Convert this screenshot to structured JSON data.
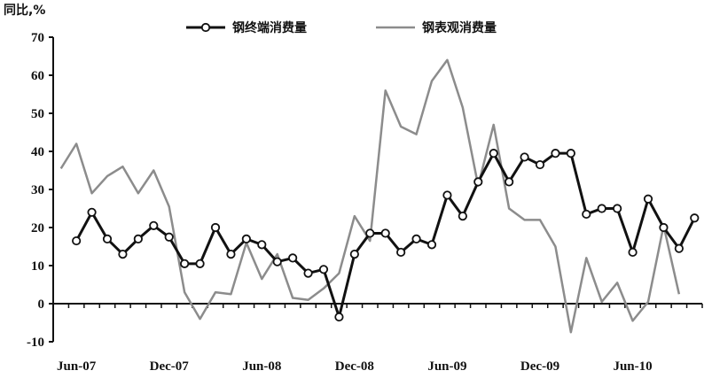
{
  "chart_data": {
    "type": "line",
    "ylabel": "同比,%",
    "ylim": [
      -10,
      70
    ],
    "yticks": [
      -10,
      0,
      10,
      20,
      30,
      40,
      50,
      60,
      70
    ],
    "grid": false,
    "legend_placement": "top",
    "x": [
      "2007-05",
      "2007-06",
      "2007-07",
      "2007-08",
      "2007-09",
      "2007-10",
      "2007-11",
      "2007-12",
      "2008-01",
      "2008-02",
      "2008-03",
      "2008-04",
      "2008-05",
      "2008-06",
      "2008-07",
      "2008-08",
      "2008-09",
      "2008-10",
      "2008-11",
      "2008-12",
      "2009-01",
      "2009-02",
      "2009-03",
      "2009-04",
      "2009-05",
      "2009-06",
      "2009-07",
      "2009-08",
      "2009-09",
      "2009-10",
      "2009-11",
      "2009-12",
      "2010-01",
      "2010-02",
      "2010-03",
      "2010-04",
      "2010-05",
      "2010-06",
      "2010-07",
      "2010-08",
      "2010-09",
      "2010-10"
    ],
    "xtick_labels": [
      {
        "x": "2007-06",
        "label": "Jun-07"
      },
      {
        "x": "2007-12",
        "label": "Dec-07"
      },
      {
        "x": "2008-06",
        "label": "Jun-08"
      },
      {
        "x": "2008-12",
        "label": "Dec-08"
      },
      {
        "x": "2009-06",
        "label": "Jun-09"
      },
      {
        "x": "2009-12",
        "label": "Dec-09"
      },
      {
        "x": "2010-06",
        "label": "Jun-10"
      }
    ],
    "series": [
      {
        "name": "钢终端消费量",
        "color": "#111111",
        "markers": true,
        "values": [
          null,
          16.5,
          24,
          17,
          13,
          17,
          20.5,
          17.5,
          10.5,
          10.5,
          20,
          13,
          17,
          15.5,
          11,
          12,
          8,
          9,
          -3.5,
          13,
          18.5,
          18.5,
          13.5,
          17,
          15.5,
          28.5,
          23,
          32,
          39.5,
          32,
          38.5,
          36.5,
          39.5,
          39.5,
          23.5,
          25,
          25,
          13.5,
          27.5,
          20,
          14.5,
          22.5
        ]
      },
      {
        "name": "钢表观消费量",
        "color": "#8c8c8c",
        "markers": false,
        "values": [
          35.5,
          42,
          29,
          33.5,
          36,
          29,
          35,
          25.5,
          3,
          -4,
          3,
          2.5,
          16,
          6.5,
          13,
          1.5,
          1,
          4,
          8,
          23,
          16.5,
          56,
          46.5,
          44.5,
          58.5,
          64,
          51.5,
          31,
          47,
          25,
          22,
          22,
          15,
          -7.5,
          12,
          0.5,
          5.5,
          -4.5,
          0.5,
          20.5,
          2.5,
          null
        ]
      }
    ]
  }
}
